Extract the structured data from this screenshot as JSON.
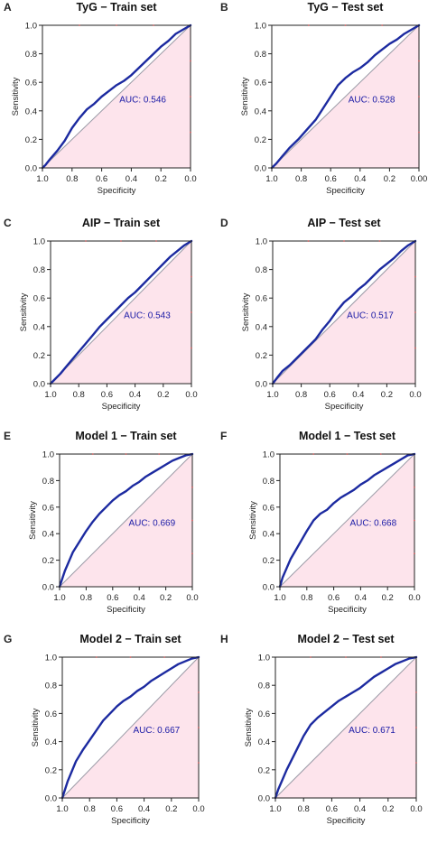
{
  "chart_data": [
    {
      "type": "line",
      "letter": "A",
      "title": "TyG − Train set",
      "xlabel": "Specificity",
      "ylabel": "Sensitivity",
      "xlim": [
        1.0,
        0.0
      ],
      "ylim": [
        0.0,
        1.0
      ],
      "x_ticks": [
        "1.0",
        "0.8",
        "0.6",
        "0.4",
        "0.2",
        "0.0"
      ],
      "y_ticks": [
        "0.0",
        "0.2",
        "0.4",
        "0.6",
        "0.8",
        "1.0"
      ],
      "auc": "AUC: 0.546",
      "roc": {
        "specificity": [
          1.0,
          0.98,
          0.95,
          0.9,
          0.85,
          0.8,
          0.75,
          0.7,
          0.65,
          0.6,
          0.55,
          0.5,
          0.45,
          0.4,
          0.35,
          0.3,
          0.25,
          0.2,
          0.15,
          0.1,
          0.05,
          0.0
        ],
        "sensitivity": [
          0.0,
          0.02,
          0.06,
          0.12,
          0.19,
          0.28,
          0.35,
          0.41,
          0.45,
          0.5,
          0.54,
          0.58,
          0.61,
          0.65,
          0.7,
          0.75,
          0.8,
          0.85,
          0.89,
          0.94,
          0.97,
          1.0
        ]
      }
    },
    {
      "type": "line",
      "letter": "B",
      "title": "TyG − Test set",
      "xlabel": "Specificity",
      "ylabel": "Sensitivity",
      "xlim": [
        1.0,
        0.0
      ],
      "ylim": [
        0.0,
        1.0
      ],
      "x_ticks": [
        "1.0",
        "0.8",
        "0.6",
        "0.4",
        "0.2",
        "0.00"
      ],
      "y_ticks": [
        "0.0",
        "0.2",
        "0.4",
        "0.6",
        "0.8",
        "1.0"
      ],
      "auc": "AUC: 0.528",
      "roc": {
        "specificity": [
          1.0,
          0.97,
          0.93,
          0.88,
          0.82,
          0.76,
          0.7,
          0.65,
          0.6,
          0.55,
          0.5,
          0.45,
          0.4,
          0.35,
          0.3,
          0.25,
          0.2,
          0.15,
          0.1,
          0.05,
          0.0
        ],
        "sensitivity": [
          0.0,
          0.03,
          0.08,
          0.14,
          0.2,
          0.27,
          0.34,
          0.42,
          0.5,
          0.58,
          0.63,
          0.67,
          0.7,
          0.74,
          0.79,
          0.83,
          0.87,
          0.9,
          0.94,
          0.97,
          1.0
        ]
      }
    },
    {
      "type": "line",
      "letter": "C",
      "title": "AIP − Train set",
      "xlabel": "Specificity",
      "ylabel": "Sensitivity",
      "xlim": [
        1.0,
        0.0
      ],
      "ylim": [
        0.0,
        1.0
      ],
      "x_ticks": [
        "1.0",
        "0.8",
        "0.6",
        "0.4",
        "0.2",
        "0.0"
      ],
      "y_ticks": [
        "0.0",
        "0.2",
        "0.4",
        "0.6",
        "0.8",
        "1.0"
      ],
      "auc": "AUC: 0.543",
      "roc": {
        "specificity": [
          1.0,
          0.97,
          0.93,
          0.88,
          0.82,
          0.76,
          0.7,
          0.65,
          0.6,
          0.55,
          0.5,
          0.45,
          0.4,
          0.35,
          0.3,
          0.25,
          0.2,
          0.15,
          0.1,
          0.05,
          0.0
        ],
        "sensitivity": [
          0.0,
          0.03,
          0.07,
          0.13,
          0.2,
          0.27,
          0.34,
          0.4,
          0.45,
          0.5,
          0.55,
          0.6,
          0.64,
          0.69,
          0.74,
          0.79,
          0.84,
          0.89,
          0.93,
          0.97,
          1.0
        ]
      }
    },
    {
      "type": "line",
      "letter": "D",
      "title": "AIP − Test set",
      "xlabel": "Specificity",
      "ylabel": "Sensitivity",
      "xlim": [
        1.0,
        0.0
      ],
      "ylim": [
        0.0,
        1.0
      ],
      "x_ticks": [
        "1.0",
        "0.8",
        "0.6",
        "0.4",
        "0.2",
        "0.0"
      ],
      "y_ticks": [
        "0.0",
        "0.2",
        "0.4",
        "0.6",
        "0.8",
        "1.0"
      ],
      "auc": "AUC: 0.517",
      "roc": {
        "specificity": [
          1.0,
          0.97,
          0.93,
          0.88,
          0.82,
          0.76,
          0.7,
          0.65,
          0.6,
          0.55,
          0.5,
          0.45,
          0.4,
          0.35,
          0.3,
          0.25,
          0.2,
          0.15,
          0.1,
          0.05,
          0.0
        ],
        "sensitivity": [
          0.0,
          0.04,
          0.09,
          0.13,
          0.19,
          0.25,
          0.31,
          0.38,
          0.44,
          0.51,
          0.57,
          0.61,
          0.66,
          0.7,
          0.75,
          0.8,
          0.84,
          0.88,
          0.93,
          0.97,
          1.0
        ]
      }
    },
    {
      "type": "line",
      "letter": "E",
      "title": "Model 1 − Train set",
      "xlabel": "Specificity",
      "ylabel": "Sensitivity",
      "xlim": [
        1.0,
        0.0
      ],
      "ylim": [
        0.0,
        1.0
      ],
      "x_ticks": [
        "1.0",
        "0.8",
        "0.6",
        "0.4",
        "0.2",
        "0.0"
      ],
      "y_ticks": [
        "0.0",
        "0.2",
        "0.4",
        "0.6",
        "0.8",
        "1.0"
      ],
      "auc": "AUC: 0.669",
      "roc": {
        "specificity": [
          1.0,
          0.98,
          0.96,
          0.93,
          0.9,
          0.85,
          0.8,
          0.75,
          0.7,
          0.65,
          0.6,
          0.55,
          0.5,
          0.45,
          0.4,
          0.35,
          0.3,
          0.25,
          0.2,
          0.15,
          0.1,
          0.05,
          0.0
        ],
        "sensitivity": [
          0.0,
          0.06,
          0.12,
          0.19,
          0.26,
          0.34,
          0.42,
          0.49,
          0.55,
          0.6,
          0.65,
          0.69,
          0.72,
          0.76,
          0.79,
          0.83,
          0.86,
          0.89,
          0.92,
          0.95,
          0.97,
          0.99,
          1.0
        ]
      }
    },
    {
      "type": "line",
      "letter": "F",
      "title": "Model 1 − Test set",
      "xlabel": "Specificity",
      "ylabel": "Sensitivity",
      "xlim": [
        1.0,
        0.0
      ],
      "ylim": [
        0.0,
        1.0
      ],
      "x_ticks": [
        "1.0",
        "0.8",
        "0.6",
        "0.4",
        "0.2",
        "0.0"
      ],
      "y_ticks": [
        "0.0",
        "0.2",
        "0.4",
        "0.6",
        "0.8",
        "1.0"
      ],
      "auc": "AUC: 0.668",
      "roc": {
        "specificity": [
          1.0,
          0.98,
          0.95,
          0.92,
          0.88,
          0.84,
          0.8,
          0.75,
          0.7,
          0.65,
          0.6,
          0.55,
          0.5,
          0.45,
          0.4,
          0.35,
          0.3,
          0.25,
          0.2,
          0.15,
          0.1,
          0.05,
          0.0
        ],
        "sensitivity": [
          0.0,
          0.07,
          0.14,
          0.21,
          0.28,
          0.35,
          0.42,
          0.5,
          0.55,
          0.58,
          0.63,
          0.67,
          0.7,
          0.73,
          0.77,
          0.8,
          0.84,
          0.87,
          0.9,
          0.93,
          0.96,
          0.99,
          1.0
        ]
      }
    },
    {
      "type": "line",
      "letter": "G",
      "title": "Model 2 − Train set",
      "xlabel": "Specificity",
      "ylabel": "Sensitivity",
      "xlim": [
        1.0,
        0.0
      ],
      "ylim": [
        0.0,
        1.0
      ],
      "x_ticks": [
        "1.0",
        "0.8",
        "0.6",
        "0.4",
        "0.2",
        "0.0"
      ],
      "y_ticks": [
        "0.0",
        "0.2",
        "0.4",
        "0.6",
        "0.8",
        "1.0"
      ],
      "auc": "AUC: 0.667",
      "roc": {
        "specificity": [
          1.0,
          0.98,
          0.96,
          0.93,
          0.9,
          0.85,
          0.8,
          0.75,
          0.7,
          0.65,
          0.6,
          0.55,
          0.5,
          0.45,
          0.4,
          0.35,
          0.3,
          0.25,
          0.2,
          0.15,
          0.1,
          0.05,
          0.0
        ],
        "sensitivity": [
          0.0,
          0.06,
          0.12,
          0.19,
          0.26,
          0.34,
          0.41,
          0.48,
          0.55,
          0.6,
          0.65,
          0.69,
          0.72,
          0.76,
          0.79,
          0.83,
          0.86,
          0.89,
          0.92,
          0.95,
          0.97,
          0.99,
          1.0
        ]
      }
    },
    {
      "type": "line",
      "letter": "H",
      "title": "Model 2 − Test set",
      "xlabel": "Specificity",
      "ylabel": "Sensitivity",
      "xlim": [
        1.0,
        0.0
      ],
      "ylim": [
        0.0,
        1.0
      ],
      "x_ticks": [
        "1.0",
        "0.8",
        "0.6",
        "0.4",
        "0.2",
        "0.0"
      ],
      "y_ticks": [
        "0.0",
        "0.2",
        "0.4",
        "0.6",
        "0.8",
        "1.0"
      ],
      "auc": "AUC: 0.671",
      "roc": {
        "specificity": [
          1.0,
          0.98,
          0.95,
          0.92,
          0.88,
          0.84,
          0.8,
          0.75,
          0.7,
          0.65,
          0.6,
          0.55,
          0.5,
          0.45,
          0.4,
          0.35,
          0.3,
          0.25,
          0.2,
          0.15,
          0.1,
          0.05,
          0.0
        ],
        "sensitivity": [
          0.0,
          0.06,
          0.13,
          0.2,
          0.28,
          0.36,
          0.44,
          0.52,
          0.57,
          0.61,
          0.65,
          0.69,
          0.72,
          0.75,
          0.78,
          0.82,
          0.86,
          0.89,
          0.92,
          0.95,
          0.97,
          0.99,
          1.0
        ]
      }
    }
  ],
  "colors": {
    "roc_curve": "#1c2aa0",
    "fill": "#fde4ec",
    "diagonal": "#9a9aa6",
    "auc_text": "#1a1aa6",
    "frame": "#222222",
    "corner_marks": "#c23a3a"
  }
}
